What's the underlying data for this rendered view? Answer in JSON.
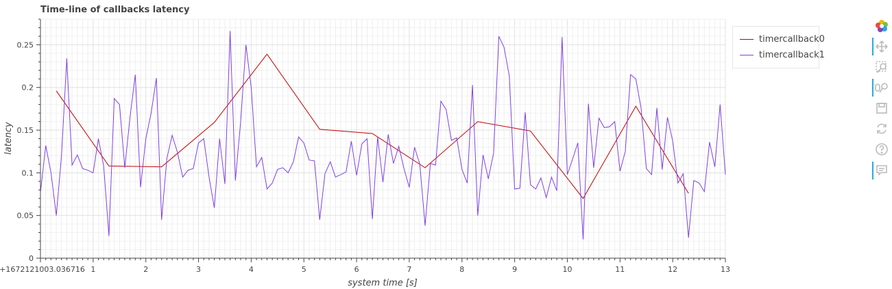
{
  "chart_data": {
    "type": "line",
    "title": "Time-line of callbacks latency",
    "xlabel": "system time [s]",
    "ylabel": "latency",
    "x_origin_label": "0+1672121003.036716",
    "xlim": [
      0,
      13
    ],
    "ylim": [
      0,
      0.28
    ],
    "x_ticks": [
      1,
      2,
      3,
      4,
      5,
      6,
      7,
      8,
      9,
      10,
      11,
      12,
      13
    ],
    "y_ticks": [
      0,
      0.05,
      0.1,
      0.15,
      0.2,
      0.25
    ],
    "y_tick_labels": [
      "0",
      "0.05",
      "0.1",
      "0.15",
      "0.2",
      "0.25"
    ],
    "grid": true,
    "legend_position": "top-right-outside",
    "series": [
      {
        "name": "timercallback0",
        "color": "#c00000",
        "x": [
          0.3,
          1.3,
          2.3,
          3.3,
          4.3,
          5.3,
          6.3,
          7.3,
          8.3,
          9.3,
          10.3,
          11.3,
          12.3
        ],
        "y": [
          0.196,
          0.108,
          0.107,
          0.159,
          0.239,
          0.151,
          0.146,
          0.106,
          0.16,
          0.149,
          0.07,
          0.178,
          0.076
        ]
      },
      {
        "name": "timercallback1",
        "color": "#7f3fe8",
        "x": [
          0.0,
          0.1,
          0.2,
          0.3,
          0.4,
          0.5,
          0.6,
          0.7,
          0.8,
          0.9,
          1.0,
          1.1,
          1.2,
          1.3,
          1.4,
          1.5,
          1.6,
          1.7,
          1.8,
          1.9,
          2.0,
          2.1,
          2.2,
          2.3,
          2.4,
          2.5,
          2.6,
          2.7,
          2.8,
          2.9,
          3.0,
          3.1,
          3.2,
          3.3,
          3.4,
          3.5,
          3.6,
          3.7,
          3.8,
          3.9,
          4.0,
          4.1,
          4.2,
          4.3,
          4.4,
          4.5,
          4.6,
          4.7,
          4.8,
          4.9,
          5.0,
          5.1,
          5.2,
          5.3,
          5.4,
          5.5,
          5.6,
          5.7,
          5.8,
          5.9,
          6.0,
          6.1,
          6.2,
          6.3,
          6.4,
          6.5,
          6.6,
          6.7,
          6.8,
          6.9,
          7.0,
          7.1,
          7.2,
          7.3,
          7.4,
          7.5,
          7.6,
          7.7,
          7.8,
          7.9,
          8.0,
          8.1,
          8.2,
          8.3,
          8.4,
          8.5,
          8.6,
          8.7,
          8.8,
          8.9,
          9.0,
          9.1,
          9.2,
          9.3,
          9.4,
          9.5,
          9.6,
          9.7,
          9.8,
          9.9,
          10.0,
          10.1,
          10.2,
          10.3,
          10.4,
          10.5,
          10.6,
          10.7,
          10.8,
          10.9,
          11.0,
          11.1,
          11.2,
          11.3,
          11.4,
          11.5,
          11.6,
          11.7,
          11.8,
          11.9,
          12.0,
          12.1,
          12.2,
          12.3,
          12.4,
          12.5,
          12.6,
          12.7,
          12.8,
          12.9,
          13.0
        ],
        "y": [
          0.077,
          0.132,
          0.1,
          0.05,
          0.12,
          0.234,
          0.109,
          0.121,
          0.105,
          0.103,
          0.1,
          0.14,
          0.108,
          0.026,
          0.187,
          0.18,
          0.106,
          0.165,
          0.215,
          0.083,
          0.14,
          0.17,
          0.211,
          0.045,
          0.117,
          0.144,
          0.124,
          0.095,
          0.103,
          0.105,
          0.135,
          0.14,
          0.095,
          0.059,
          0.14,
          0.087,
          0.266,
          0.091,
          0.16,
          0.25,
          0.2,
          0.107,
          0.118,
          0.081,
          0.088,
          0.104,
          0.106,
          0.1,
          0.113,
          0.142,
          0.135,
          0.115,
          0.114,
          0.045,
          0.099,
          0.113,
          0.095,
          0.098,
          0.101,
          0.137,
          0.097,
          0.134,
          0.14,
          0.046,
          0.142,
          0.089,
          0.145,
          0.111,
          0.131,
          0.105,
          0.083,
          0.13,
          0.11,
          0.038,
          0.111,
          0.109,
          0.184,
          0.174,
          0.138,
          0.141,
          0.104,
          0.088,
          0.203,
          0.05,
          0.121,
          0.093,
          0.123,
          0.26,
          0.247,
          0.213,
          0.081,
          0.082,
          0.171,
          0.086,
          0.081,
          0.094,
          0.071,
          0.095,
          0.079,
          0.259,
          0.098,
          0.116,
          0.135,
          0.022,
          0.181,
          0.106,
          0.164,
          0.153,
          0.154,
          0.16,
          0.102,
          0.125,
          0.215,
          0.21,
          0.176,
          0.105,
          0.098,
          0.176,
          0.104,
          0.165,
          0.137,
          0.088,
          0.099,
          0.024,
          0.091,
          0.088,
          0.078,
          0.136,
          0.107,
          0.18,
          0.098
        ]
      }
    ]
  },
  "toolbar": {
    "tools": [
      {
        "name": "bokeh-logo-icon",
        "active": false
      },
      {
        "name": "pan-icon",
        "active": true
      },
      {
        "name": "box-zoom-icon",
        "active": false
      },
      {
        "name": "wheel-zoom-icon",
        "active": true
      },
      {
        "name": "save-icon",
        "active": false
      },
      {
        "name": "reset-icon",
        "active": false
      },
      {
        "name": "help-icon",
        "active": false
      },
      {
        "name": "hover-icon",
        "active": true
      }
    ]
  }
}
